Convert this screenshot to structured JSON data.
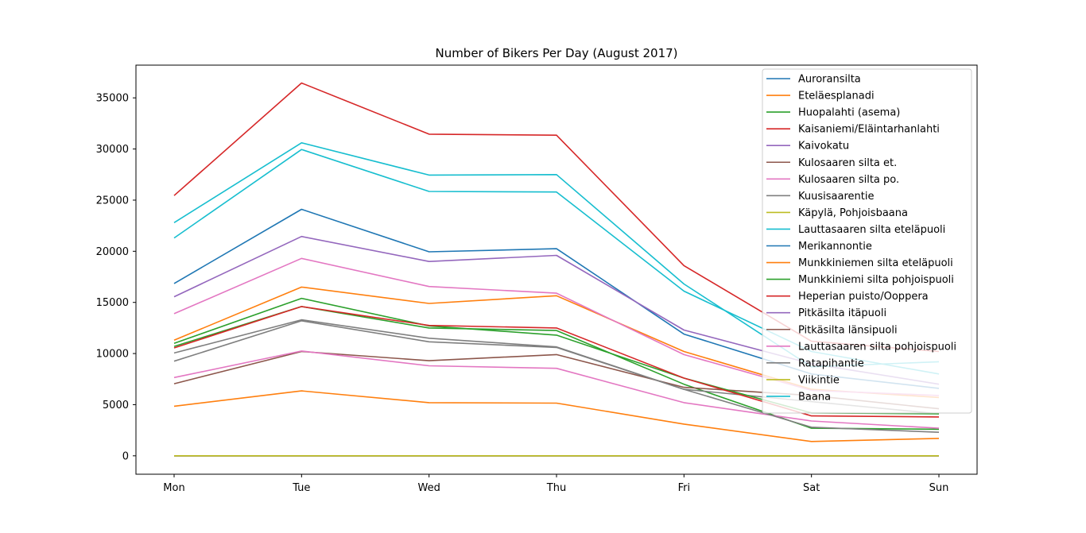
{
  "chart_data": {
    "type": "line",
    "title": "Number of Bikers Per Day (August 2017)",
    "xlabel": "",
    "ylabel": "",
    "categories": [
      "Mon",
      "Tue",
      "Wed",
      "Thu",
      "Fri",
      "Sat",
      "Sun"
    ],
    "ylim": [
      -1800,
      38200
    ],
    "yticks": [
      0,
      5000,
      10000,
      15000,
      20000,
      25000,
      30000,
      35000
    ],
    "legend_position": "top-right",
    "grid": false,
    "series": [
      {
        "name": "Auroransilta",
        "color": "#1f77b4",
        "values": [
          16850,
          24100,
          19950,
          20250,
          11900,
          8000,
          6600
        ]
      },
      {
        "name": "Eteläesplanadi",
        "color": "#ff7f0e",
        "values": [
          4850,
          6350,
          5200,
          5150,
          3100,
          1400,
          1700
        ]
      },
      {
        "name": "Huopalahti (asema)",
        "color": "#2ca02c",
        "values": [
          10700,
          14600,
          12500,
          12250,
          7000,
          2700,
          2600
        ]
      },
      {
        "name": "Kaisaniemi/Eläintarhanlahti",
        "color": "#d62728",
        "values": [
          25450,
          36450,
          31450,
          31350,
          18600,
          11200,
          10200
        ]
      },
      {
        "name": "Kaivokatu",
        "color": "#9467bd",
        "values": [
          15550,
          21450,
          19000,
          19600,
          12300,
          9000,
          7000
        ]
      },
      {
        "name": "Kulosaaren silta et.",
        "color": "#8c564b",
        "values": [
          7050,
          10200,
          9300,
          9900,
          6700,
          5900,
          4600
        ]
      },
      {
        "name": "Kulosaaren silta po.",
        "color": "#e377c2",
        "values": [
          7650,
          10250,
          8800,
          8550,
          5200,
          3400,
          2700
        ]
      },
      {
        "name": "Kuusisaarentie",
        "color": "#7f7f7f",
        "values": [
          9250,
          13200,
          11150,
          10600,
          6500,
          5300,
          4100
        ]
      },
      {
        "name": "Käpylä, Pohjoisbaana",
        "color": "#bcbd22",
        "values": [
          0,
          0,
          0,
          0,
          0,
          0,
          0
        ]
      },
      {
        "name": "Lauttasaaren silta eteläpuoli",
        "color": "#17becf",
        "values": [
          21300,
          29950,
          25850,
          25800,
          16100,
          10200,
          8000
        ]
      },
      {
        "name": "Merikannontie",
        "color": "#1f77b4",
        "values": [
          0,
          0,
          0,
          0,
          0,
          0,
          0
        ]
      },
      {
        "name": "Munkkiniemen silta eteläpuoli",
        "color": "#ff7f0e",
        "values": [
          11300,
          16500,
          14900,
          15650,
          10200,
          6500,
          5700
        ]
      },
      {
        "name": "Munkkiniemi silta pohjoispuoli",
        "color": "#2ca02c",
        "values": [
          11000,
          15400,
          12700,
          11800,
          7600,
          4200,
          4100
        ]
      },
      {
        "name": "Heperian puisto/Ooppera",
        "color": "#d62728",
        "values": [
          10550,
          14600,
          12750,
          12500,
          7600,
          3900,
          3800
        ]
      },
      {
        "name": "Pitkäsilta itäpuoli",
        "color": "#9467bd",
        "values": [
          0,
          0,
          0,
          0,
          0,
          0,
          0
        ]
      },
      {
        "name": "Pitkäsilta länsipuoli",
        "color": "#8c564b",
        "values": [
          0,
          0,
          0,
          0,
          0,
          0,
          0
        ]
      },
      {
        "name": "Lauttasaaren silta pohjoispuoli",
        "color": "#e377c2",
        "values": [
          13900,
          19300,
          16550,
          15900,
          9900,
          6400,
          5900
        ]
      },
      {
        "name": "Ratapihantie",
        "color": "#7f7f7f",
        "values": [
          10050,
          13300,
          11500,
          10650,
          6500,
          2800,
          2300
        ]
      },
      {
        "name": "Viikintie",
        "color": "#bcbd22",
        "values": [
          0,
          0,
          0,
          0,
          0,
          0,
          0
        ]
      },
      {
        "name": "Baana",
        "color": "#17becf",
        "values": [
          22800,
          30600,
          27450,
          27500,
          16800,
          8700,
          9200
        ]
      }
    ]
  }
}
